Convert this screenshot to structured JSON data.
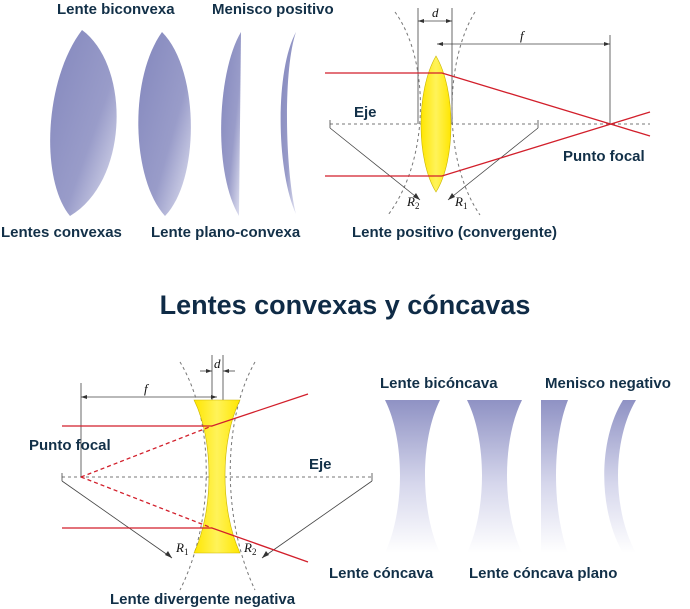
{
  "title": "Lentes convexas y cóncavas",
  "convex": {
    "top_left_label": "Lente biconvexa",
    "top_right_label": "Menisco positivo",
    "bottom_left_label": "Lentes convexas",
    "bottom_right_label": "Lente plano-convexa"
  },
  "positive_lens": {
    "axis_label": "Eje",
    "focal_point_label": "Punto focal",
    "caption": "Lente positivo (convergente)",
    "d_label": "d",
    "f_label": "f",
    "r_label": "R",
    "r2_sub": "2",
    "r1_sub": "1"
  },
  "negative_lens": {
    "axis_label": "Eje",
    "focal_point_label": "Punto focal",
    "caption": "Lente divergente negativa",
    "d_label": "d",
    "f_label": "f",
    "r_label": "R",
    "r1_sub": "1",
    "r2_sub": "2"
  },
  "concave": {
    "top_left_label": "Lente bicóncava",
    "top_right_label": "Menisco negativo",
    "bottom_left_label": "Lente cóncava",
    "bottom_right_label": "Lente cóncava plano"
  },
  "colors": {
    "lens_fill": "#8f92c4",
    "lens_yellow": "#ffee00",
    "ray": "#d21f2b",
    "title": "#0f2b46"
  }
}
